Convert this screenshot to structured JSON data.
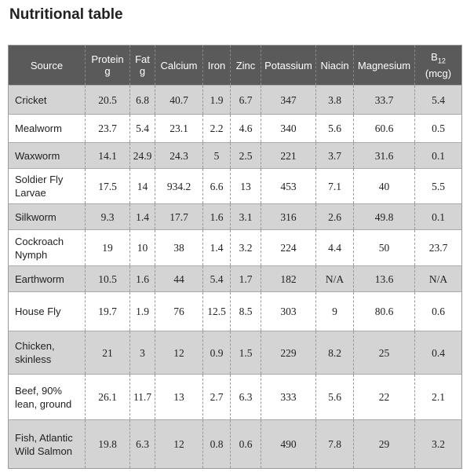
{
  "title": "Nutritional table",
  "table": {
    "header": [
      [
        "Source"
      ],
      [
        "Protein",
        "g"
      ],
      [
        "Fat",
        "g"
      ],
      [
        "Calcium"
      ],
      [
        "Iron"
      ],
      [
        "Zinc"
      ],
      [
        "Potassium"
      ],
      [
        "Niacin"
      ],
      [
        "Magnesium"
      ],
      [
        "B",
        "12",
        "(mcg)"
      ]
    ],
    "rows": [
      [
        "Cricket",
        20.5,
        6.8,
        40.7,
        1.9,
        6.7,
        347,
        3.8,
        33.7,
        5.4
      ],
      [
        "Mealworm",
        23.7,
        5.4,
        23.1,
        2.2,
        4.6,
        340,
        5.6,
        60.6,
        0.5
      ],
      [
        "Waxworm",
        14.1,
        24.9,
        24.3,
        5,
        2.5,
        221,
        3.7,
        31.6,
        0.1
      ],
      [
        "Soldier Fly Larvae",
        17.5,
        14,
        934.2,
        6.6,
        13,
        453,
        7.1,
        40,
        5.5
      ],
      [
        "Silkworm",
        9.3,
        1.4,
        17.7,
        1.6,
        3.1,
        316,
        2.6,
        49.8,
        0.1
      ],
      [
        "Cockroach Nymph",
        19,
        10,
        38,
        1.4,
        3.2,
        224,
        4.4,
        50,
        23.7
      ],
      [
        "Earthworm",
        10.5,
        1.6,
        44,
        5.4,
        1.7,
        182,
        "N/A",
        13.6,
        "N/A"
      ],
      [
        "House Fly",
        19.7,
        1.9,
        76,
        12.5,
        8.5,
        303,
        9,
        80.6,
        0.6
      ],
      [
        "Chicken, skinless",
        21,
        3,
        12,
        0.9,
        1.5,
        229,
        8.2,
        25,
        0.4
      ],
      [
        "Beef, 90% lean, ground",
        26.1,
        11.7,
        13,
        2.7,
        6.3,
        333,
        5.6,
        22,
        2.1
      ],
      [
        "Fish, Atlantic Wild Salmon",
        19.8,
        6.3,
        12,
        0.8,
        0.6,
        490,
        7.8,
        29,
        3.2
      ]
    ]
  }
}
